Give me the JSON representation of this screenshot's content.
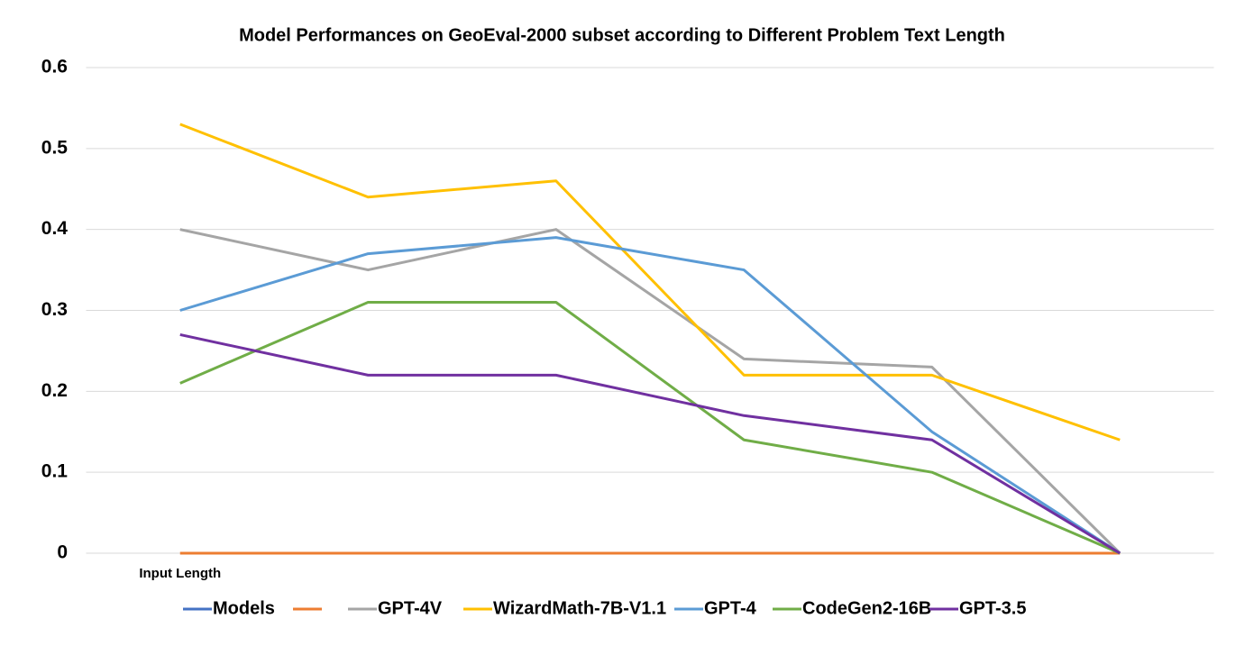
{
  "chart_data": {
    "type": "line",
    "title": "Model Performances on GeoEval-2000 subset according to Different Problem Text Length",
    "categories": [
      "Input Length",
      null,
      null,
      null,
      null,
      null
    ],
    "series": [
      {
        "name": "Models",
        "color": "#4472c4",
        "values": [
          null,
          null,
          null,
          null,
          null,
          null
        ]
      },
      {
        "color": "#ed7d31",
        "values": [
          0,
          0,
          0,
          0,
          0,
          0
        ]
      },
      {
        "name": "GPT-4V",
        "color": "#a5a5a5",
        "values": [
          0.4,
          0.35,
          0.4,
          0.24,
          0.23,
          0
        ]
      },
      {
        "name": "WizardMath-7B-V1.1",
        "color": "#ffc000",
        "values": [
          0.53,
          0.44,
          0.46,
          0.22,
          0.22,
          0.14
        ]
      },
      {
        "name": "GPT-4",
        "color": "#5b9bd5",
        "values": [
          0.3,
          0.37,
          0.39,
          0.35,
          0.15,
          0
        ]
      },
      {
        "name": "CodeGen2-16B",
        "color": "#70ad47",
        "values": [
          0.21,
          0.31,
          0.31,
          0.14,
          0.1,
          0
        ]
      },
      {
        "name": "GPT-3.5",
        "color": "#7030a0",
        "values": [
          0.27,
          0.22,
          0.22,
          0.17,
          0.14,
          0
        ]
      }
    ],
    "ylim": [
      0,
      0.6
    ],
    "yticks": [
      0,
      0.1,
      0.2,
      0.3,
      0.4,
      0.5,
      0.6
    ],
    "grid": true,
    "legend": "bottom"
  }
}
